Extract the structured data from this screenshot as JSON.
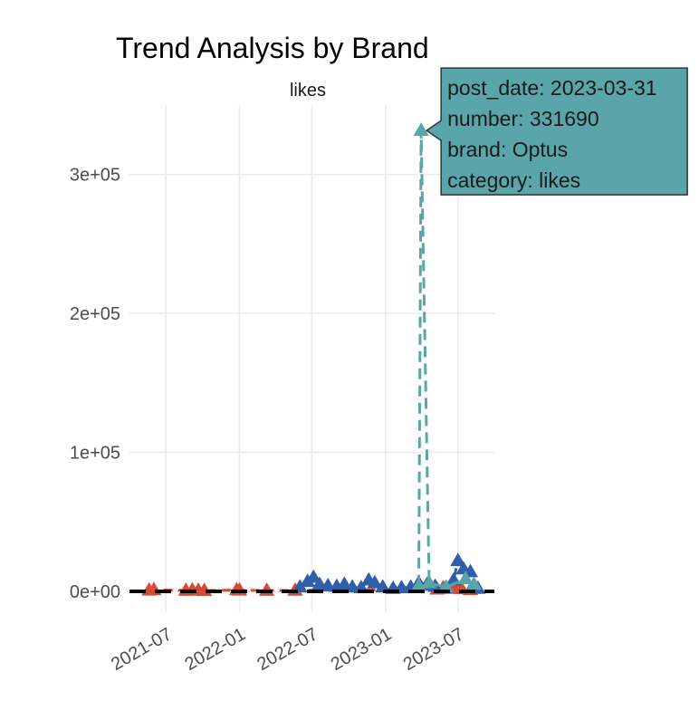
{
  "chart_data": {
    "type": "line",
    "title": "Trend Analysis by Brand",
    "subtitle": "likes",
    "xlabel": "",
    "ylabel": "",
    "x_ticks": [
      "2021-07",
      "2022-01",
      "2022-07",
      "2023-01",
      "2023-07"
    ],
    "y_ticks": [
      "0e+00",
      "1e+05",
      "2e+05",
      "3e+05"
    ],
    "xlim": [
      "2021-04-01",
      "2023-09-30"
    ],
    "ylim": [
      -15000,
      350000
    ],
    "grid": true,
    "legend": "none",
    "baseline_value": 0,
    "colors": {
      "red": "#d94a33",
      "blue": "#2f5fa8",
      "teal": "#5aa5aa",
      "baseline": "#000000"
    },
    "series": [
      {
        "color": "red",
        "points": [
          [
            "2021-05-20",
            800
          ],
          [
            "2021-06-01",
            1100
          ],
          [
            "2021-08-20",
            600
          ],
          [
            "2021-09-05",
            900
          ],
          [
            "2021-09-20",
            700
          ],
          [
            "2021-10-05",
            500
          ],
          [
            "2021-12-25",
            1000
          ],
          [
            "2022-01-01",
            800
          ],
          [
            "2022-03-10",
            600
          ],
          [
            "2022-05-20",
            700
          ],
          [
            "2023-05-10",
            1500
          ],
          [
            "2023-05-25",
            2500
          ],
          [
            "2023-06-10",
            2000
          ],
          [
            "2023-06-25",
            3000
          ],
          [
            "2023-07-10",
            1800
          ],
          [
            "2023-08-01",
            1200
          ]
        ]
      },
      {
        "color": "blue",
        "points": [
          [
            "2022-06-01",
            3000
          ],
          [
            "2022-06-20",
            7000
          ],
          [
            "2022-07-05",
            10000
          ],
          [
            "2022-07-20",
            5000
          ],
          [
            "2022-08-10",
            4000
          ],
          [
            "2022-09-01",
            3500
          ],
          [
            "2022-09-20",
            5000
          ],
          [
            "2022-10-10",
            3000
          ],
          [
            "2022-11-01",
            2500
          ],
          [
            "2022-11-20",
            8000
          ],
          [
            "2022-12-05",
            6000
          ],
          [
            "2022-12-25",
            3000
          ],
          [
            "2023-01-20",
            2000
          ],
          [
            "2023-02-10",
            2500
          ],
          [
            "2023-03-05",
            3000
          ],
          [
            "2023-03-25",
            6000
          ],
          [
            "2023-04-15",
            5000
          ],
          [
            "2023-05-05",
            3500
          ],
          [
            "2023-06-01",
            2500
          ],
          [
            "2023-06-20",
            8000
          ],
          [
            "2023-07-01",
            22000
          ],
          [
            "2023-07-15",
            16000
          ],
          [
            "2023-08-01",
            14000
          ],
          [
            "2023-08-20",
            2000
          ]
        ]
      },
      {
        "color": "teal",
        "points": [
          [
            "2023-03-25",
            4000
          ],
          [
            "2023-03-31",
            331690
          ],
          [
            "2023-04-20",
            6000
          ],
          [
            "2023-06-01",
            3000
          ],
          [
            "2023-07-20",
            9000
          ],
          [
            "2023-08-10",
            5000
          ]
        ]
      }
    ],
    "tooltip": {
      "lines": [
        "post_date: 2023-03-31",
        "number: 331690",
        "brand: Optus",
        "category: likes"
      ]
    }
  }
}
